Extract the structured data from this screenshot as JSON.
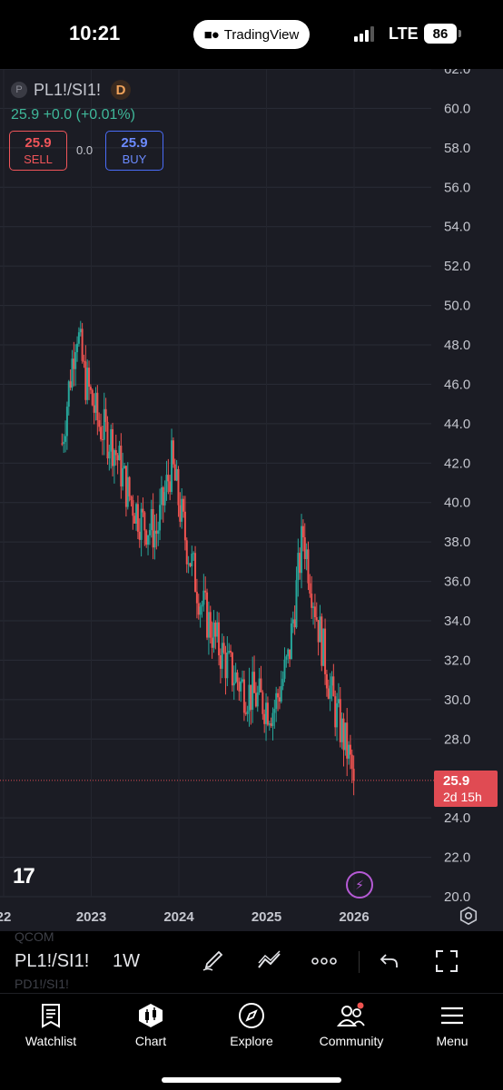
{
  "status_bar": {
    "time": "10:21",
    "app_pill": "TradingView",
    "network": "LTE",
    "battery": "86"
  },
  "symbol": {
    "exchange_badge": "P",
    "name": "PL1!/SI1!",
    "interval_badge": "D"
  },
  "quote": {
    "text": "25.9 +0.0 (+0.01%)"
  },
  "sell": {
    "price": "25.9",
    "label": "SELL"
  },
  "spread": "0.0",
  "buy": {
    "price": "25.9",
    "label": "BUY"
  },
  "price_tag": {
    "price": "25.9",
    "countdown": "2d 15h"
  },
  "watermark": "17",
  "toolbar": {
    "symbol": "PL1!/SI1!",
    "interval": "1W",
    "ghost_top": "QCOM",
    "ghost_bottom": "PD1!/SI1!"
  },
  "tabs": [
    {
      "label": "Watchlist",
      "icon": "watchlist-icon"
    },
    {
      "label": "Chart",
      "icon": "chart-icon"
    },
    {
      "label": "Explore",
      "icon": "compass-icon"
    },
    {
      "label": "Community",
      "icon": "community-icon"
    },
    {
      "label": "Menu",
      "icon": "menu-icon"
    }
  ],
  "colors": {
    "up": "#26a69a",
    "down": "#ef5350",
    "background": "#1b1c24",
    "price_tag": "#e04b53"
  },
  "chart_data": {
    "type": "candlestick",
    "y_ticks": [
      "62.0",
      "60.0",
      "58.0",
      "56.0",
      "54.0",
      "52.0",
      "50.0",
      "48.0",
      "46.0",
      "44.0",
      "42.0",
      "40.0",
      "38.0",
      "36.0",
      "34.0",
      "32.0",
      "30.0",
      "28.0",
      "24.0",
      "22.0",
      "20.0"
    ],
    "y_range": [
      20,
      62
    ],
    "x_ticks": [
      "22",
      "2023",
      "2024",
      "2025",
      "2026"
    ],
    "last_price": 25.9,
    "grid": true,
    "close_path": [
      [
        "2022-09",
        43.0
      ],
      [
        "2022-10",
        46.0
      ],
      [
        "2022-11",
        49.0
      ],
      [
        "2022-12",
        46.5
      ],
      [
        "2023-02",
        44.0
      ],
      [
        "2023-04",
        43.0
      ],
      [
        "2023-06",
        40.5
      ],
      [
        "2023-08",
        39.0
      ],
      [
        "2023-10",
        38.5
      ],
      [
        "2023-12",
        42.0
      ],
      [
        "2024-02",
        38.0
      ],
      [
        "2024-04",
        35.0
      ],
      [
        "2024-06",
        33.0
      ],
      [
        "2024-08",
        31.5
      ],
      [
        "2024-10",
        30.5
      ],
      [
        "2024-12",
        30.0
      ],
      [
        "2025-02",
        29.5
      ],
      [
        "2025-04",
        32.0
      ],
      [
        "2025-06",
        38.5
      ],
      [
        "2025-08",
        34.0
      ],
      [
        "2025-10",
        30.0
      ],
      [
        "2025-12",
        27.5
      ],
      [
        "2026-01",
        25.9
      ]
    ]
  }
}
